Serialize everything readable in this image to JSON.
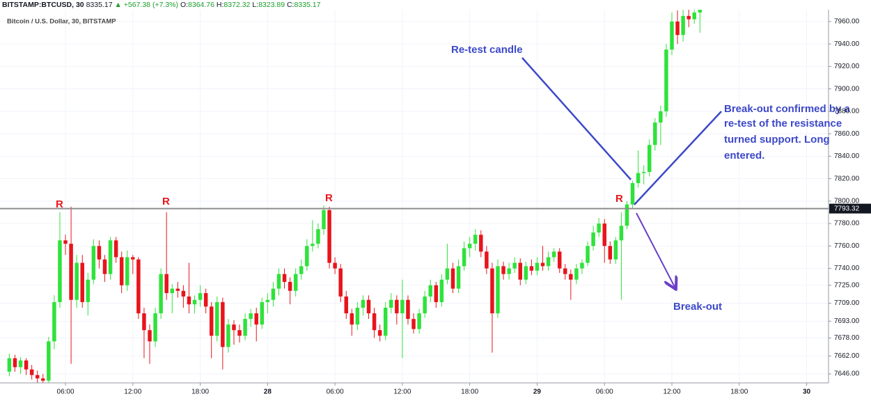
{
  "header": {
    "symbol": "BITSTAMP:BTCUSD, 30",
    "last": "8335.17",
    "change": "▲ +567.38 (+7.3%)",
    "ohlc": [
      {
        "label": "O:",
        "value": "8364.76"
      },
      {
        "label": "H:",
        "value": "8372.32"
      },
      {
        "label": "L:",
        "value": "8323.89"
      },
      {
        "label": "C:",
        "value": "8335.17"
      }
    ]
  },
  "chart_data": {
    "type": "candlestick",
    "subtitle": "Bitcoin / U.S. Dollar, 30, BITSTAMP",
    "up_color": "#2fe23b",
    "down_color": "#e8141c",
    "grid": true,
    "x": [
      1,
      1.5,
      2,
      2.5,
      3,
      3.5,
      4,
      4.5,
      5,
      5.5,
      6,
      6.5,
      7,
      7.5,
      8,
      8.5,
      9,
      9.5,
      10,
      10.5,
      11,
      11.5,
      12,
      12.5,
      13,
      13.5,
      14,
      14.5,
      15,
      15.5,
      16,
      16.5,
      17,
      17.5,
      18,
      18.5,
      19,
      19.5,
      20,
      20.5,
      21,
      21.5,
      22,
      22.5,
      23,
      23.5,
      24,
      24.5,
      25,
      25.5,
      26,
      26.5,
      27,
      27.5,
      28,
      28.5,
      29,
      29.5,
      30,
      30.5,
      31,
      31.5,
      32,
      32.5,
      33,
      33.5,
      34,
      34.5,
      35,
      35.5,
      36,
      36.5,
      37,
      37.5,
      38,
      38.5,
      39,
      39.5,
      40,
      40.5,
      41,
      41.5,
      42,
      42.5,
      43,
      43.5,
      44,
      44.5,
      45,
      45.5,
      46,
      46.5,
      47,
      47.5,
      48,
      48.5,
      49,
      49.5,
      50,
      50.5,
      51,
      51.5,
      52,
      52.5,
      53,
      53.5,
      54,
      54.5,
      55,
      55.5,
      56,
      56.5,
      57,
      57.5,
      58,
      58.5,
      59,
      59.5,
      60,
      60.5,
      61,
      61.5,
      62,
      62.5
    ],
    "ohlc": [
      [
        7648,
        7664,
        7644,
        7660
      ],
      [
        7660,
        7663,
        7648,
        7652
      ],
      [
        7652,
        7661,
        7646,
        7658
      ],
      [
        7658,
        7660,
        7645,
        7650
      ],
      [
        7650,
        7654,
        7641,
        7645
      ],
      [
        7645,
        7649,
        7638,
        7642
      ],
      [
        7642,
        7646,
        7637,
        7640
      ],
      [
        7640,
        7679,
        7638,
        7675
      ],
      [
        7675,
        7716,
        7668,
        7710
      ],
      [
        7710,
        7790,
        7705,
        7765
      ],
      [
        7765,
        7770,
        7752,
        7762
      ],
      [
        7762,
        7795,
        7655,
        7712
      ],
      [
        7712,
        7752,
        7705,
        7745
      ],
      [
        7745,
        7752,
        7705,
        7710
      ],
      [
        7710,
        7736,
        7698,
        7730
      ],
      [
        7730,
        7766,
        7726,
        7760
      ],
      [
        7760,
        7765,
        7740,
        7748
      ],
      [
        7748,
        7752,
        7728,
        7735
      ],
      [
        7735,
        7768,
        7730,
        7765
      ],
      [
        7765,
        7768,
        7745,
        7750
      ],
      [
        7750,
        7755,
        7718,
        7725
      ],
      [
        7725,
        7756,
        7720,
        7750
      ],
      [
        7750,
        7752,
        7735,
        7748
      ],
      [
        7748,
        7750,
        7695,
        7700
      ],
      [
        7700,
        7705,
        7660,
        7685
      ],
      [
        7685,
        7690,
        7655,
        7675
      ],
      [
        7675,
        7705,
        7670,
        7700
      ],
      [
        7700,
        7740,
        7695,
        7735
      ],
      [
        7735,
        7790,
        7712,
        7718
      ],
      [
        7718,
        7726,
        7700,
        7722
      ],
      [
        7722,
        7728,
        7714,
        7720
      ],
      [
        7720,
        7725,
        7705,
        7715
      ],
      [
        7715,
        7745,
        7700,
        7708
      ],
      [
        7708,
        7716,
        7700,
        7712
      ],
      [
        7712,
        7725,
        7706,
        7718
      ],
      [
        7718,
        7722,
        7700,
        7706
      ],
      [
        7706,
        7710,
        7660,
        7680
      ],
      [
        7680,
        7715,
        7675,
        7710
      ],
      [
        7710,
        7714,
        7650,
        7670
      ],
      [
        7670,
        7695,
        7665,
        7690
      ],
      [
        7690,
        7694,
        7672,
        7685
      ],
      [
        7685,
        7690,
        7674,
        7680
      ],
      [
        7680,
        7700,
        7676,
        7695
      ],
      [
        7695,
        7704,
        7688,
        7700
      ],
      [
        7700,
        7705,
        7675,
        7690
      ],
      [
        7690,
        7714,
        7686,
        7710
      ],
      [
        7710,
        7718,
        7700,
        7712
      ],
      [
        7712,
        7728,
        7706,
        7722
      ],
      [
        7722,
        7740,
        7716,
        7735
      ],
      [
        7735,
        7740,
        7722,
        7728
      ],
      [
        7728,
        7732,
        7708,
        7720
      ],
      [
        7720,
        7740,
        7715,
        7735
      ],
      [
        7735,
        7748,
        7730,
        7742
      ],
      [
        7742,
        7766,
        7738,
        7760
      ],
      [
        7760,
        7783,
        7755,
        7762
      ],
      [
        7762,
        7780,
        7758,
        7775
      ],
      [
        7775,
        7796,
        7770,
        7792
      ],
      [
        7792,
        7795,
        7740,
        7745
      ],
      [
        7745,
        7750,
        7735,
        7740
      ],
      [
        7740,
        7744,
        7710,
        7715
      ],
      [
        7715,
        7720,
        7695,
        7700
      ],
      [
        7700,
        7704,
        7680,
        7690
      ],
      [
        7690,
        7710,
        7685,
        7705
      ],
      [
        7705,
        7716,
        7698,
        7712
      ],
      [
        7712,
        7716,
        7695,
        7700
      ],
      [
        7700,
        7705,
        7678,
        7685
      ],
      [
        7685,
        7690,
        7675,
        7680
      ],
      [
        7680,
        7710,
        7676,
        7705
      ],
      [
        7705,
        7718,
        7700,
        7712
      ],
      [
        7712,
        7716,
        7690,
        7700
      ],
      [
        7700,
        7730,
        7660,
        7712
      ],
      [
        7712,
        7716,
        7690,
        7695
      ],
      [
        7695,
        7700,
        7682,
        7686
      ],
      [
        7686,
        7704,
        7682,
        7700
      ],
      [
        7700,
        7720,
        7696,
        7715
      ],
      [
        7715,
        7730,
        7710,
        7725
      ],
      [
        7725,
        7728,
        7705,
        7710
      ],
      [
        7710,
        7735,
        7706,
        7730
      ],
      [
        7730,
        7762,
        7726,
        7740
      ],
      [
        7740,
        7745,
        7718,
        7722
      ],
      [
        7722,
        7748,
        7718,
        7742
      ],
      [
        7742,
        7764,
        7738,
        7758
      ],
      [
        7758,
        7768,
        7750,
        7762
      ],
      [
        7762,
        7775,
        7756,
        7770
      ],
      [
        7770,
        7774,
        7750,
        7755
      ],
      [
        7755,
        7760,
        7735,
        7740
      ],
      [
        7740,
        7745,
        7665,
        7700
      ],
      [
        7700,
        7748,
        7696,
        7742
      ],
      [
        7742,
        7746,
        7730,
        7735
      ],
      [
        7735,
        7745,
        7730,
        7740
      ],
      [
        7740,
        7750,
        7736,
        7745
      ],
      [
        7745,
        7749,
        7725,
        7730
      ],
      [
        7730,
        7746,
        7726,
        7742
      ],
      [
        7742,
        7748,
        7734,
        7738
      ],
      [
        7738,
        7750,
        7734,
        7745
      ],
      [
        7745,
        7760,
        7738,
        7742
      ],
      [
        7742,
        7755,
        7738,
        7750
      ],
      [
        7750,
        7758,
        7746,
        7755
      ],
      [
        7755,
        7758,
        7736,
        7740
      ],
      [
        7740,
        7744,
        7730,
        7735
      ],
      [
        7735,
        7739,
        7712,
        7730
      ],
      [
        7730,
        7744,
        7726,
        7740
      ],
      [
        7740,
        7748,
        7735,
        7745
      ],
      [
        7745,
        7764,
        7742,
        7760
      ],
      [
        7760,
        7778,
        7756,
        7772
      ],
      [
        7772,
        7785,
        7768,
        7780
      ],
      [
        7780,
        7784,
        7745,
        7760
      ],
      [
        7760,
        7764,
        7744,
        7748
      ],
      [
        7748,
        7768,
        7744,
        7765
      ],
      [
        7765,
        7790,
        7712,
        7778
      ],
      [
        7778,
        7800,
        7775,
        7797
      ],
      [
        7797,
        7818,
        7793,
        7816
      ],
      [
        7816,
        7845,
        7812,
        7825
      ],
      [
        7825,
        7832,
        7815,
        7826
      ],
      [
        7826,
        7855,
        7822,
        7850
      ],
      [
        7850,
        7874,
        7845,
        7870
      ],
      [
        7870,
        7885,
        7850,
        7880
      ],
      [
        7880,
        7940,
        7875,
        7935
      ],
      [
        7935,
        7968,
        7930,
        7960
      ],
      [
        7960,
        7970,
        7940,
        7948
      ],
      [
        7948,
        7972,
        7942,
        7965
      ],
      [
        7965,
        7975,
        7955,
        7962
      ],
      [
        7962,
        7976,
        7958,
        7968
      ],
      [
        7968,
        7978,
        7950,
        7972
      ]
    ],
    "xlim": [
      0.17,
      73.95
    ],
    "xticks": [
      {
        "value": 6,
        "label": "06:00"
      },
      {
        "value": 12,
        "label": "12:00"
      },
      {
        "value": 18,
        "label": "18:00"
      },
      {
        "value": 24,
        "label": "28"
      },
      {
        "value": 30,
        "label": "06:00"
      },
      {
        "value": 36,
        "label": "12:00"
      },
      {
        "value": 42,
        "label": "18:00"
      },
      {
        "value": 48,
        "label": "29"
      },
      {
        "value": 54,
        "label": "06:00"
      },
      {
        "value": 60,
        "label": "12:00"
      },
      {
        "value": 66,
        "label": "18:00"
      },
      {
        "value": 72,
        "label": "30"
      }
    ],
    "ylim": [
      7638,
      7970.5
    ],
    "yticks": [
      {
        "value": 7960,
        "label": "7960.00"
      },
      {
        "value": 7940,
        "label": "7940.00"
      },
      {
        "value": 7920,
        "label": "7920.00"
      },
      {
        "value": 7900,
        "label": "7900.00"
      },
      {
        "value": 7880,
        "label": "7880.00"
      },
      {
        "value": 7860,
        "label": "7860.00"
      },
      {
        "value": 7840,
        "label": "7840.00"
      },
      {
        "value": 7820,
        "label": "7820.00"
      },
      {
        "value": 7800,
        "label": "7800.00"
      },
      {
        "value": 7780,
        "label": "7780.00"
      },
      {
        "value": 7760,
        "label": "7760.00"
      },
      {
        "value": 7740,
        "label": "7740.00"
      },
      {
        "value": 7725,
        "label": "7725.00"
      },
      {
        "value": 7709,
        "label": "7709.00"
      },
      {
        "value": 7693,
        "label": "7693.00"
      },
      {
        "value": 7678,
        "label": "7678.00"
      },
      {
        "value": 7662,
        "label": "7662.00"
      },
      {
        "value": 7646,
        "label": "7646.00"
      }
    ],
    "resistance": 7793.32,
    "annotations": {
      "resistance_marks": [
        "R",
        "R",
        "R",
        "R"
      ],
      "retest": "Re-test candle",
      "confirmation": [
        "Break-out confirmed by a",
        "re-test of the resistance",
        "turned support. Long",
        "entered."
      ],
      "breakout": "Break-out"
    }
  }
}
